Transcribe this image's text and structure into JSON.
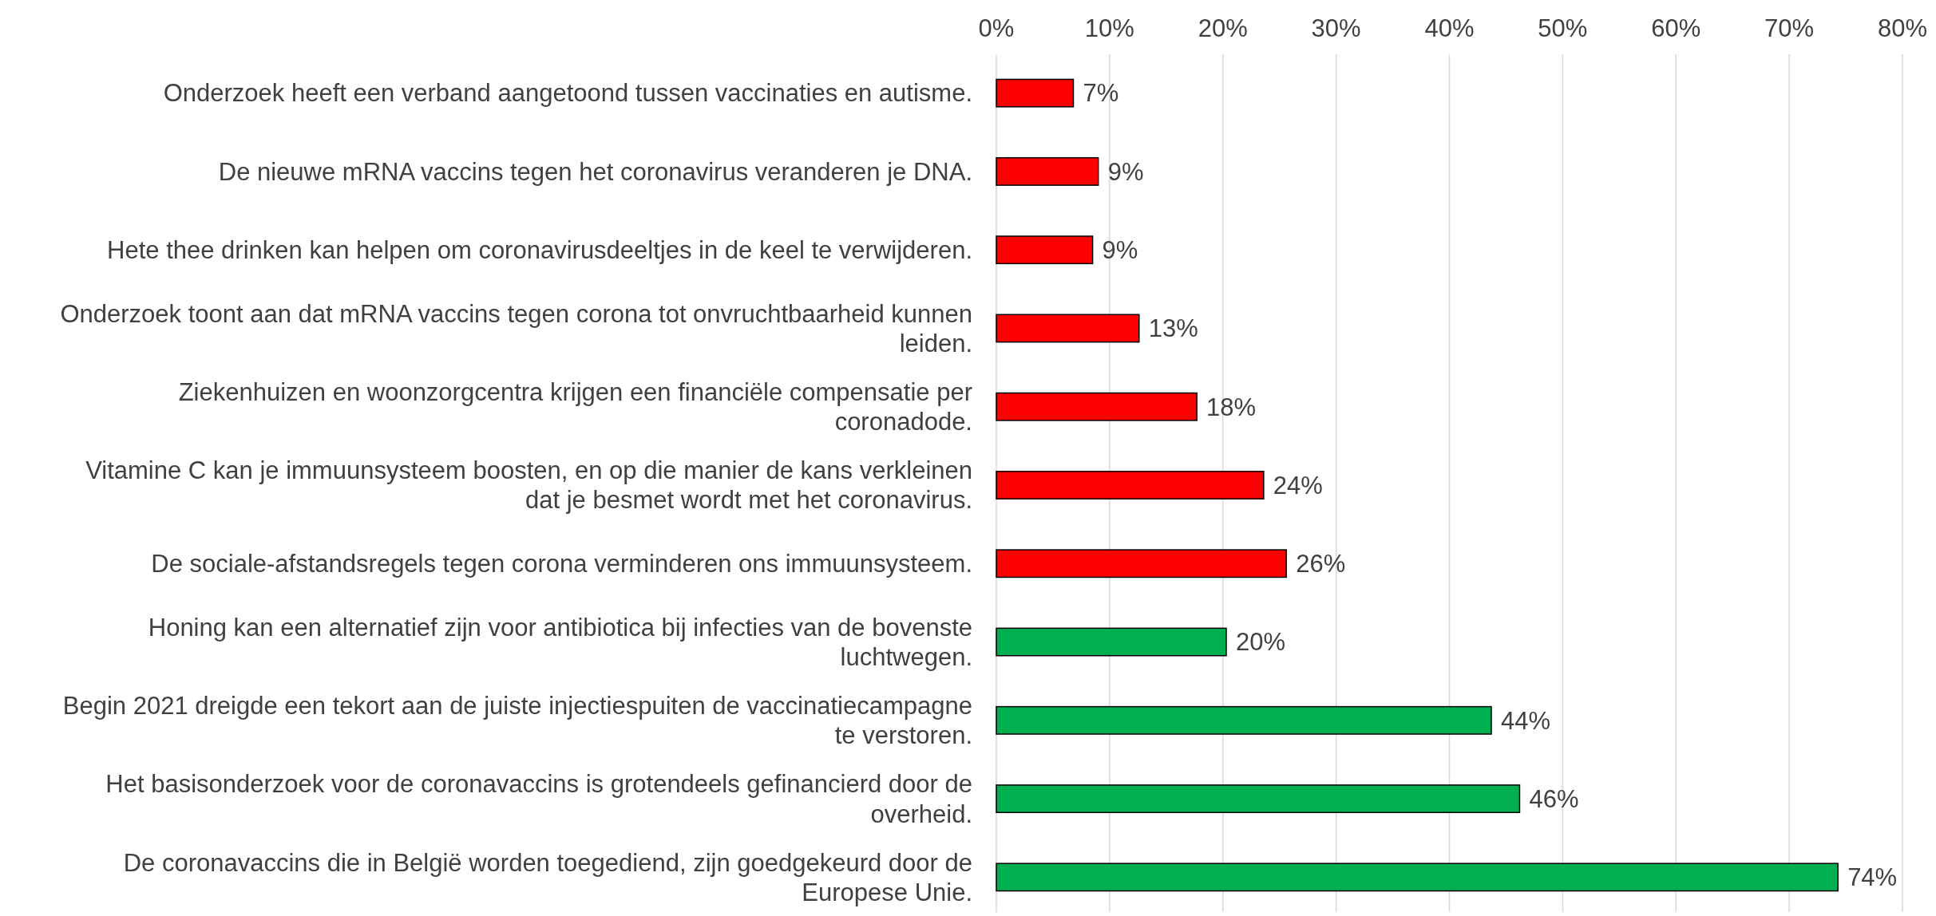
{
  "chart_data": {
    "type": "bar",
    "orientation": "horizontal",
    "categories": [
      "Onderzoek heeft een verband aangetoond tussen vaccinaties en autisme.",
      "De nieuwe mRNA vaccins tegen het coronavirus veranderen je DNA.",
      "Hete thee drinken kan helpen om coronavirusdeeltjes in de keel te verwijderen.",
      "Onderzoek toont aan dat mRNA vaccins tegen corona tot onvruchtbaarheid kunnen leiden.",
      "Ziekenhuizen en woonzorgcentra krijgen een financiële compensatie per coronadode.",
      "Vitamine C kan je immuunsysteem boosten, en op die manier de kans verkleinen dat je besmet wordt met het coronavirus.",
      "De sociale-afstandsregels tegen corona verminderen ons immuunsysteem.",
      "Honing kan een alternatief zijn voor antibiotica bij infecties van de bovenste luchtwegen.",
      "Begin 2021 dreigde een tekort aan de juiste injectiespuiten de vaccinatiecampagne te verstoren.",
      "Het basisonderzoek voor de coronavaccins is grotendeels gefinancierd door de overheid.",
      "De coronavaccins die in België worden toegediend, zijn goedgekeurd door de Europese Unie."
    ],
    "values": [
      6.8,
      9.0,
      8.5,
      12.6,
      17.7,
      23.6,
      25.6,
      20.3,
      43.7,
      46.2,
      74.3
    ],
    "value_labels": [
      "7%",
      "9%",
      "9%",
      "13%",
      "18%",
      "24%",
      "26%",
      "20%",
      "44%",
      "46%",
      "74%"
    ],
    "colors": [
      "#ff0000",
      "#ff0000",
      "#ff0000",
      "#ff0000",
      "#ff0000",
      "#ff0000",
      "#ff0000",
      "#00b050",
      "#00b050",
      "#00b050",
      "#00b050"
    ],
    "xlim": [
      0,
      80
    ],
    "xticks": [
      {
        "value": 0,
        "label": "0%"
      },
      {
        "value": 10,
        "label": "10%"
      },
      {
        "value": 20,
        "label": "20%"
      },
      {
        "value": 30,
        "label": "30%"
      },
      {
        "value": 40,
        "label": "40%"
      },
      {
        "value": 50,
        "label": "50%"
      },
      {
        "value": 60,
        "label": "60%"
      },
      {
        "value": 70,
        "label": "70%"
      },
      {
        "value": 80,
        "label": "80%"
      }
    ],
    "grid": "x"
  }
}
